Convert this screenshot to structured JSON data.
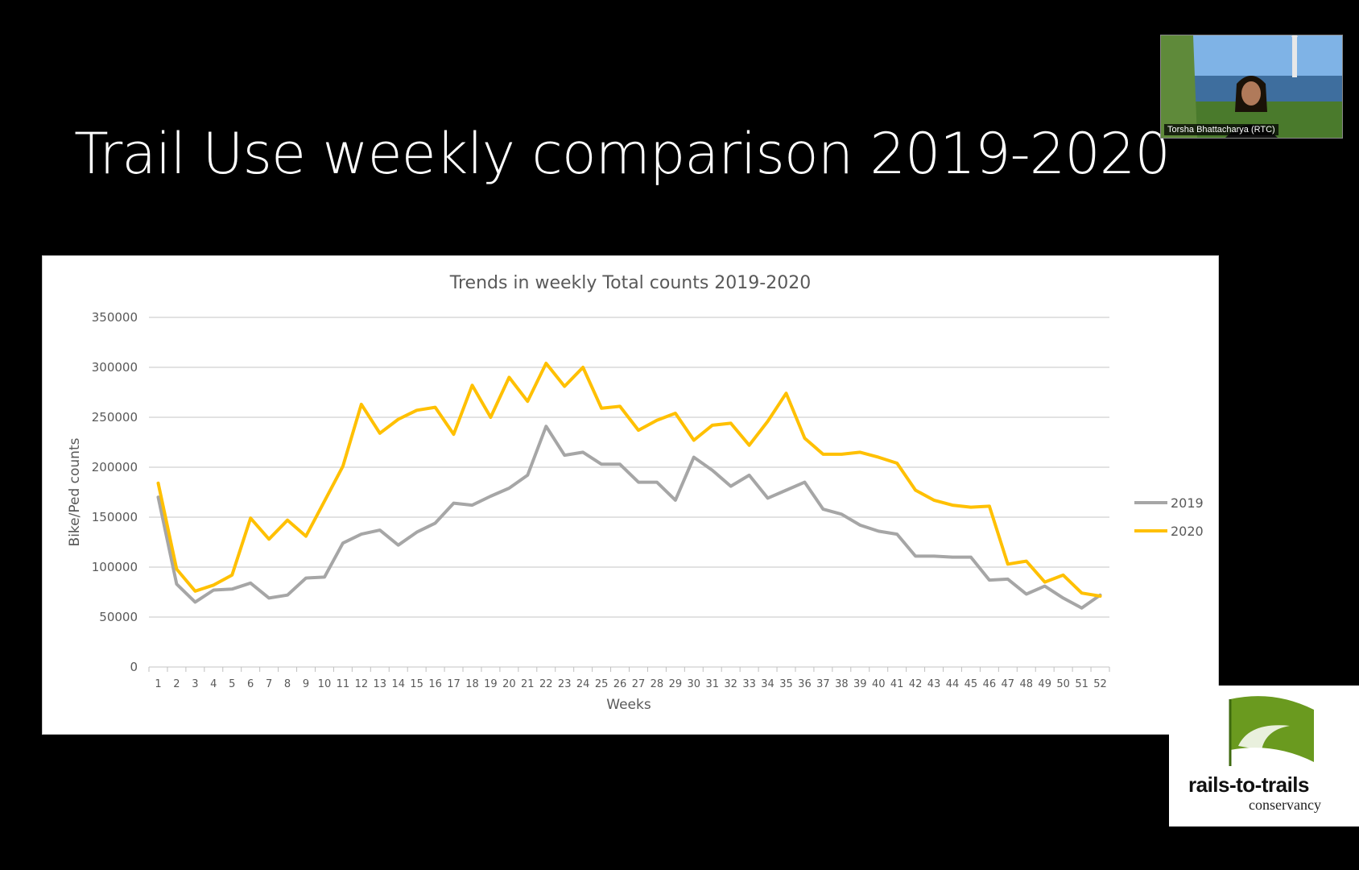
{
  "slide": {
    "title": "Trail Use weekly comparison 2019-2020"
  },
  "video": {
    "participant_name": "Torsha Bhattacharya (RTC)"
  },
  "logo": {
    "name": "rails-to-trails",
    "subtitle": "conservancy",
    "brand_green": "#6a9a1f"
  },
  "chart_data": {
    "type": "line",
    "title": "Trends in weekly Total counts 2019-2020",
    "xlabel": "Weeks",
    "ylabel": "Bike/Ped counts",
    "ylim": [
      0,
      350000
    ],
    "yticks": [
      0,
      50000,
      100000,
      150000,
      200000,
      250000,
      300000,
      350000
    ],
    "grid": true,
    "legend_position": "right",
    "x": [
      1,
      2,
      3,
      4,
      5,
      6,
      7,
      8,
      9,
      10,
      11,
      12,
      13,
      14,
      15,
      16,
      17,
      18,
      19,
      20,
      21,
      22,
      23,
      24,
      25,
      26,
      27,
      28,
      29,
      30,
      31,
      32,
      33,
      34,
      35,
      36,
      37,
      38,
      39,
      40,
      41,
      42,
      43,
      44,
      45,
      46,
      47,
      48,
      49,
      50,
      51,
      52
    ],
    "series": [
      {
        "name": "2019",
        "color": "#a6a6a6",
        "values": [
          170000,
          83000,
          65000,
          77000,
          78000,
          84000,
          69000,
          72000,
          89000,
          90000,
          124000,
          133000,
          137000,
          122000,
          135000,
          144000,
          164000,
          162000,
          171000,
          179000,
          192000,
          241000,
          212000,
          215000,
          203000,
          203000,
          185000,
          185000,
          167000,
          210000,
          197000,
          181000,
          192000,
          169000,
          177000,
          185000,
          158000,
          153000,
          142000,
          136000,
          133000,
          111000,
          111000,
          110000,
          110000,
          87000,
          88000,
          73000,
          81000,
          69000,
          59000,
          72000
        ]
      },
      {
        "name": "2020",
        "color": "#ffc000",
        "values": [
          184000,
          98000,
          76000,
          82000,
          92000,
          149000,
          128000,
          147000,
          131000,
          166000,
          201000,
          263000,
          234000,
          248000,
          257000,
          260000,
          233000,
          282000,
          250000,
          290000,
          266000,
          304000,
          281000,
          300000,
          259000,
          261000,
          237000,
          247000,
          254000,
          227000,
          242000,
          244000,
          222000,
          246000,
          274000,
          229000,
          213000,
          213000,
          215000,
          210000,
          204000,
          177000,
          167000,
          162000,
          160000,
          161000,
          103000,
          106000,
          85000,
          92000,
          74000,
          71000
        ]
      }
    ]
  }
}
